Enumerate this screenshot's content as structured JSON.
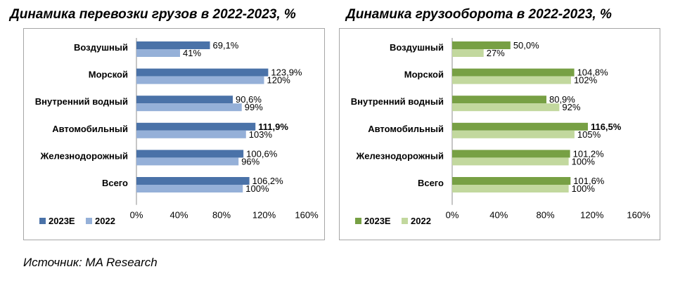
{
  "source": "Источник: MA Research",
  "chart_data": [
    {
      "type": "bar",
      "orientation": "horizontal",
      "title": "Динамика перевозки грузов в 2022-2023, %",
      "categories": [
        "Воздушный",
        "Морской",
        "Внутренний водный",
        "Автомобильный",
        "Железнодорожный",
        "Всего"
      ],
      "series": [
        {
          "name": "2023Е",
          "color": "#4a72a8",
          "values": [
            69.1,
            123.9,
            90.6,
            111.9,
            100.6,
            106.2
          ],
          "labels": [
            "69,1%",
            "123,9%",
            "90,6%",
            "111,9%",
            "100,6%",
            "106,2%"
          ],
          "bold_index": 3
        },
        {
          "name": "2022",
          "color": "#95b0d8",
          "values": [
            41,
            120,
            99,
            103,
            96,
            100
          ],
          "labels": [
            "41%",
            "120%",
            "99%",
            "103%",
            "96%",
            "100%"
          ]
        }
      ],
      "xlim": [
        0,
        160
      ],
      "ticks": [
        "0%",
        "40%",
        "80%",
        "120%",
        "160%"
      ],
      "legend_position": "bottom-left"
    },
    {
      "type": "bar",
      "orientation": "horizontal",
      "title": "Динамика грузооборота в 2022-2023, %",
      "categories": [
        "Воздушный",
        "Морской",
        "Внутренний водный",
        "Автомобильный",
        "Железнодорожный",
        "Всего"
      ],
      "series": [
        {
          "name": "2023Е",
          "color": "#77a044",
          "values": [
            50.0,
            104.8,
            80.9,
            116.5,
            101.2,
            101.6
          ],
          "labels": [
            "50,0%",
            "104,8%",
            "80,9%",
            "116,5%",
            "101,2%",
            "101,6%"
          ],
          "bold_index": 3
        },
        {
          "name": "2022",
          "color": "#c2d89e",
          "values": [
            27,
            102,
            92,
            105,
            100,
            100
          ],
          "labels": [
            "27%",
            "102%",
            "92%",
            "105%",
            "100%",
            "100%"
          ]
        }
      ],
      "xlim": [
        0,
        160
      ],
      "ticks": [
        "0%",
        "40%",
        "80%",
        "120%",
        "160%"
      ],
      "legend_position": "bottom-left"
    }
  ]
}
